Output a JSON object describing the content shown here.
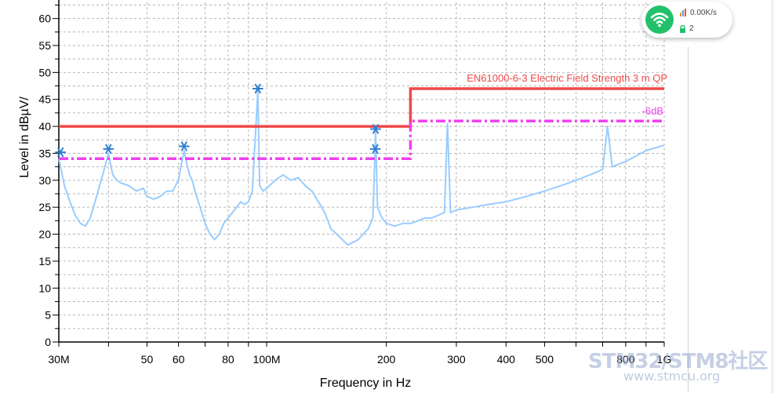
{
  "chart_data": {
    "type": "line",
    "title": "",
    "xlabel": "Frequency in Hz",
    "ylabel": "Level in dBµV/",
    "x_scale": "log",
    "xlim": [
      30,
      1000
    ],
    "ylim": [
      0,
      63
    ],
    "grid": true,
    "x_ticks": [
      {
        "value": 30,
        "label": "30M"
      },
      {
        "value": 50,
        "label": "50"
      },
      {
        "value": 60,
        "label": "60"
      },
      {
        "value": 80,
        "label": "80"
      },
      {
        "value": 100,
        "label": "100M"
      },
      {
        "value": 200,
        "label": "200"
      },
      {
        "value": 300,
        "label": "300"
      },
      {
        "value": 400,
        "label": "400"
      },
      {
        "value": 500,
        "label": "500"
      },
      {
        "value": 800,
        "label": "800"
      },
      {
        "value": 1000,
        "label": "1G"
      }
    ],
    "y_ticks": [
      0,
      5,
      10,
      15,
      20,
      25,
      30,
      35,
      40,
      45,
      50,
      55,
      60
    ],
    "limit_lines": [
      {
        "name": "EN61000-6-3 Electric Field Strength 3 m QP",
        "color": "#f04848",
        "style": "solid",
        "points": [
          [
            30,
            40
          ],
          [
            230,
            40
          ],
          [
            230,
            47
          ],
          [
            1000,
            47
          ]
        ]
      },
      {
        "name": "-6dB",
        "color": "#f040f0",
        "style": "dashdot",
        "points": [
          [
            30,
            34
          ],
          [
            230,
            34
          ],
          [
            230,
            41
          ],
          [
            1000,
            41
          ]
        ]
      }
    ],
    "series": [
      {
        "color": "#99ccff",
        "points": [
          [
            30,
            34
          ],
          [
            31,
            29
          ],
          [
            32,
            26
          ],
          [
            33,
            23.5
          ],
          [
            34,
            22
          ],
          [
            35,
            21.5
          ],
          [
            36,
            23
          ],
          [
            37,
            26
          ],
          [
            38,
            29
          ],
          [
            39,
            32
          ],
          [
            40,
            35
          ],
          [
            41,
            31
          ],
          [
            42,
            30
          ],
          [
            43,
            29.5
          ],
          [
            45,
            29
          ],
          [
            47,
            28
          ],
          [
            49,
            28.5
          ],
          [
            50,
            27
          ],
          [
            52,
            26.5
          ],
          [
            54,
            27
          ],
          [
            56,
            28
          ],
          [
            58,
            28
          ],
          [
            60,
            30
          ],
          [
            61,
            33
          ],
          [
            62,
            35.5
          ],
          [
            63,
            33
          ],
          [
            64,
            31
          ],
          [
            65,
            30
          ],
          [
            66,
            28
          ],
          [
            68,
            25
          ],
          [
            70,
            22
          ],
          [
            72,
            20
          ],
          [
            74,
            19
          ],
          [
            76,
            20
          ],
          [
            78,
            22
          ],
          [
            80,
            23
          ],
          [
            82,
            24
          ],
          [
            84,
            25
          ],
          [
            86,
            26
          ],
          [
            88,
            25.5
          ],
          [
            90,
            26
          ],
          [
            92,
            28
          ],
          [
            95,
            46.5
          ],
          [
            96,
            29
          ],
          [
            98,
            28
          ],
          [
            100,
            28.5
          ],
          [
            105,
            30
          ],
          [
            110,
            31
          ],
          [
            115,
            30
          ],
          [
            120,
            30.5
          ],
          [
            125,
            29
          ],
          [
            130,
            28
          ],
          [
            135,
            26
          ],
          [
            140,
            24
          ],
          [
            145,
            21
          ],
          [
            150,
            20
          ],
          [
            155,
            19
          ],
          [
            160,
            18
          ],
          [
            165,
            18.5
          ],
          [
            170,
            19
          ],
          [
            175,
            20
          ],
          [
            180,
            21
          ],
          [
            185,
            23
          ],
          [
            188,
            39
          ],
          [
            190,
            25
          ],
          [
            195,
            23
          ],
          [
            200,
            22
          ],
          [
            210,
            21.5
          ],
          [
            220,
            22
          ],
          [
            230,
            22
          ],
          [
            240,
            22.5
          ],
          [
            250,
            23
          ],
          [
            260,
            23
          ],
          [
            270,
            23.5
          ],
          [
            280,
            24
          ],
          [
            285,
            40.5
          ],
          [
            290,
            24
          ],
          [
            300,
            24.5
          ],
          [
            330,
            25
          ],
          [
            360,
            25.5
          ],
          [
            400,
            26
          ],
          [
            450,
            27
          ],
          [
            500,
            28
          ],
          [
            550,
            29
          ],
          [
            600,
            30
          ],
          [
            650,
            31
          ],
          [
            700,
            32
          ],
          [
            720,
            40
          ],
          [
            740,
            32.5
          ],
          [
            800,
            33.5
          ],
          [
            850,
            34.5
          ],
          [
            900,
            35.5
          ],
          [
            950,
            36
          ],
          [
            1000,
            36.5
          ]
        ]
      }
    ],
    "markers": [
      {
        "x": 30.3,
        "y": 35.2
      },
      {
        "x": 40,
        "y": 35.8
      },
      {
        "x": 62,
        "y": 36.3
      },
      {
        "x": 95,
        "y": 47
      },
      {
        "x": 188,
        "y": 39.5
      },
      {
        "x": 187.5,
        "y": 35.8
      }
    ]
  },
  "status": {
    "speed": "0.00K/s",
    "count": "2",
    "accent": "#22c06b"
  },
  "watermark": {
    "title": "STM32/STM8社区",
    "url": "www.stmcu.org"
  }
}
